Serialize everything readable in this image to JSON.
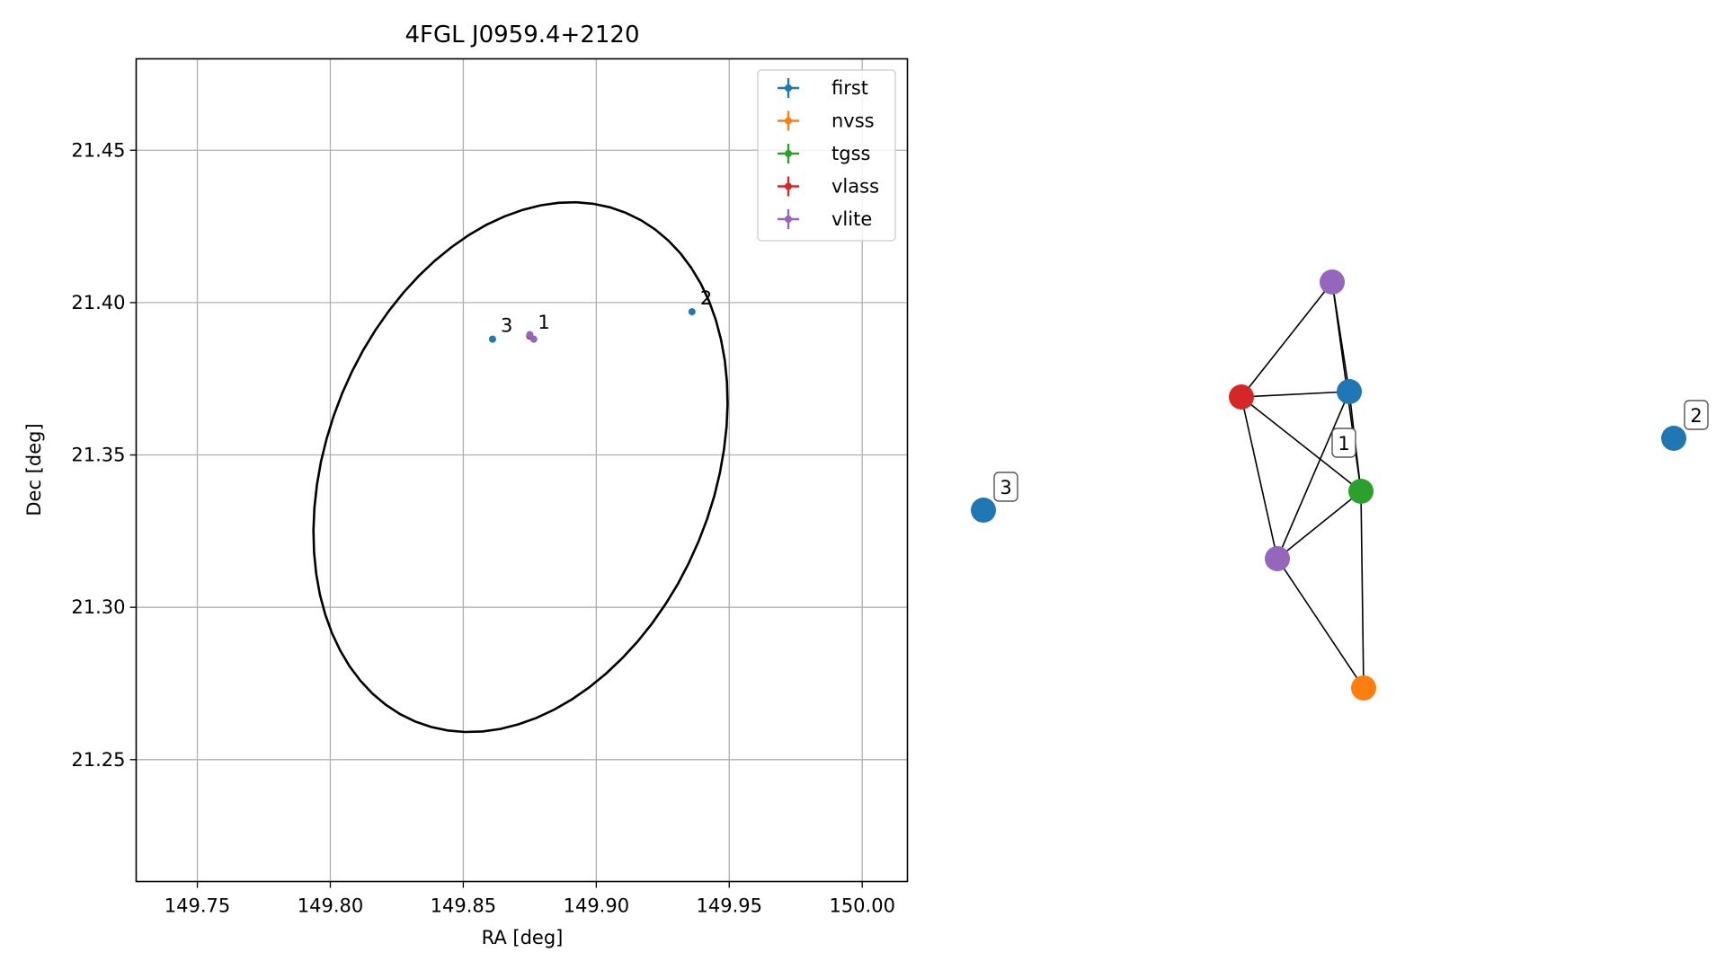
{
  "chart_data": [
    {
      "type": "scatter",
      "title": "4FGL J0959.4+2120",
      "xlabel": "RA [deg]",
      "ylabel": "Dec [deg]",
      "xlim": [
        149.727,
        150.017
      ],
      "ylim": [
        21.21,
        21.48
      ],
      "xticks": [
        149.75,
        149.8,
        149.85,
        149.9,
        149.95,
        150.0
      ],
      "xtick_labels": [
        "149.75",
        "149.80",
        "149.85",
        "149.90",
        "149.95",
        "150.00"
      ],
      "yticks": [
        21.25,
        21.3,
        21.35,
        21.4,
        21.45
      ],
      "ytick_labels": [
        "21.25",
        "21.30",
        "21.35",
        "21.40",
        "21.45"
      ],
      "grid": true,
      "legend_position": "top-right",
      "series": [
        {
          "name": "first",
          "color": "#1f77b4",
          "points": [
            {
              "x": 149.875,
              "y": 21.389,
              "label": "1"
            },
            {
              "x": 149.936,
              "y": 21.397,
              "label": "2"
            },
            {
              "x": 149.861,
              "y": 21.388,
              "label": "3"
            }
          ]
        },
        {
          "name": "nvss",
          "color": "#ff7f0e",
          "points": [
            {
              "x": 149.875,
              "y": 21.389
            }
          ]
        },
        {
          "name": "tgss",
          "color": "#2ca02c",
          "points": [
            {
              "x": 149.875,
              "y": 21.389
            }
          ]
        },
        {
          "name": "vlass",
          "color": "#d62728",
          "points": [
            {
              "x": 149.875,
              "y": 21.389
            }
          ]
        },
        {
          "name": "vlite",
          "color": "#9467bd",
          "points": [
            {
              "x": 149.875,
              "y": 21.3895
            },
            {
              "x": 149.8765,
              "y": 21.388
            }
          ]
        }
      ],
      "ellipse": {
        "center_x": 149.8715,
        "center_y": 21.346,
        "semi_axis_ra": 0.0705,
        "semi_axis_dec": 0.093,
        "angle_deg": -33,
        "color": "#000000"
      }
    },
    {
      "type": "graph",
      "nodes": [
        {
          "id": "n-first-1",
          "group": "first",
          "color": "#1f77b4"
        },
        {
          "id": "n-first-2",
          "group": "first",
          "color": "#1f77b4",
          "label": "2"
        },
        {
          "id": "n-first-3",
          "group": "first",
          "color": "#1f77b4",
          "label": "3"
        },
        {
          "id": "n-nvss",
          "group": "nvss",
          "color": "#ff7f0e"
        },
        {
          "id": "n-tgss",
          "group": "tgss",
          "color": "#2ca02c"
        },
        {
          "id": "n-vlass",
          "group": "vlass",
          "color": "#d62728"
        },
        {
          "id": "n-vlite-a",
          "group": "vlite",
          "color": "#9467bd"
        },
        {
          "id": "n-vlite-b",
          "group": "vlite",
          "color": "#9467bd"
        }
      ],
      "edges": [
        [
          "n-vlite-a",
          "n-first-1"
        ],
        [
          "n-vlite-a",
          "n-tgss"
        ],
        [
          "n-vlite-a",
          "n-vlass"
        ],
        [
          "n-vlass",
          "n-first-1"
        ],
        [
          "n-vlass",
          "n-tgss"
        ],
        [
          "n-vlass",
          "n-vlite-b"
        ],
        [
          "n-first-1",
          "n-tgss"
        ],
        [
          "n-first-1",
          "n-vlite-b"
        ],
        [
          "n-tgss",
          "n-vlite-b"
        ],
        [
          "n-tgss",
          "n-nvss"
        ],
        [
          "n-vlite-b",
          "n-nvss"
        ]
      ],
      "cluster_label": "1"
    }
  ]
}
